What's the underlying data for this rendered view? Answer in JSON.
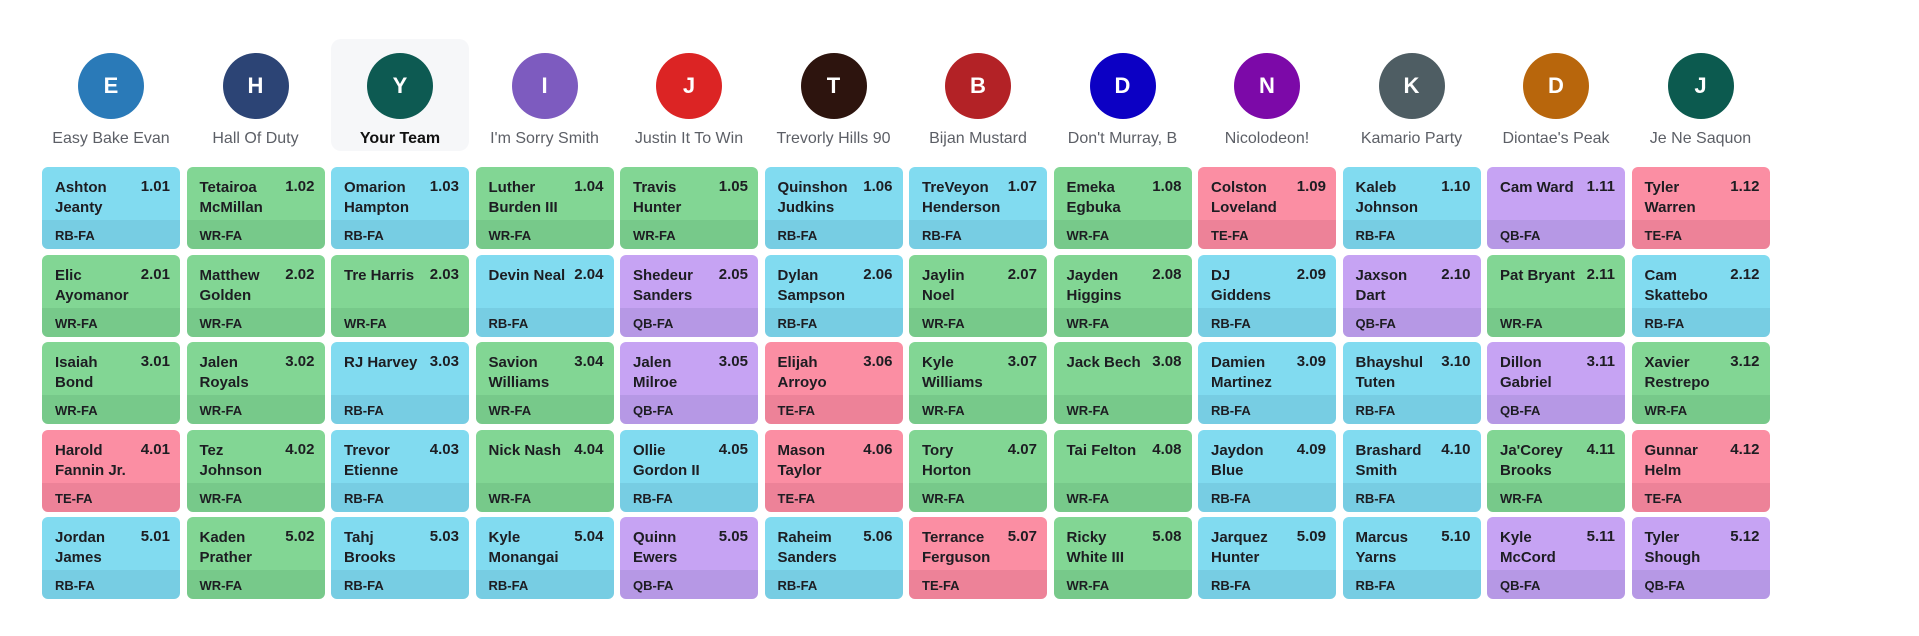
{
  "position_colors": {
    "RB": {
      "top": "#81dbf0",
      "bottom": "#77cde3"
    },
    "WR": {
      "top": "#82d694",
      "bottom": "#77c98a"
    },
    "QB": {
      "top": "#c6a3f3",
      "bottom": "#b698e5"
    },
    "TE": {
      "top": "#fb8ea3",
      "bottom": "#ed8298"
    }
  },
  "teams": [
    {
      "initial": "E",
      "name": "Easy Bake Evan",
      "color": "#2a7ab8"
    },
    {
      "initial": "H",
      "name": "Hall Of Duty",
      "color": "#2c4475"
    },
    {
      "initial": "Y",
      "name": "Your Team",
      "color": "#0d5a52",
      "mine": true
    },
    {
      "initial": "I",
      "name": "I'm Sorry Smith",
      "color": "#7d5bbf"
    },
    {
      "initial": "J",
      "name": "Justin It To Win",
      "color": "#dc2424"
    },
    {
      "initial": "T",
      "name": "Trevorly Hills 90",
      "color": "#2d140e"
    },
    {
      "initial": "B",
      "name": "Bijan Mustard",
      "color": "#b32226"
    },
    {
      "initial": "D",
      "name": "Don't Murray, B",
      "color": "#0c00c4"
    },
    {
      "initial": "N",
      "name": "Nicolodeon!",
      "color": "#7c09a8"
    },
    {
      "initial": "K",
      "name": "Kamario Party",
      "color": "#4e5d63"
    },
    {
      "initial": "D",
      "name": "Diontae's Peak",
      "color": "#b8660c"
    },
    {
      "initial": "J",
      "name": "Je Ne Saquon",
      "color": "#0c5a4f"
    }
  ],
  "rounds": [
    [
      {
        "name": "Ashton Jeanty",
        "pick": "1.01",
        "pos": "RB-FA"
      },
      {
        "name": "Tetairoa McMillan",
        "pick": "1.02",
        "pos": "WR-FA"
      },
      {
        "name": "Omarion Hampton",
        "pick": "1.03",
        "pos": "RB-FA"
      },
      {
        "name": "Luther Burden III",
        "pick": "1.04",
        "pos": "WR-FA"
      },
      {
        "name": "Travis Hunter",
        "pick": "1.05",
        "pos": "WR-FA"
      },
      {
        "name": "Quinshon Judkins",
        "pick": "1.06",
        "pos": "RB-FA"
      },
      {
        "name": "TreVeyon Henderson",
        "pick": "1.07",
        "pos": "RB-FA"
      },
      {
        "name": "Emeka Egbuka",
        "pick": "1.08",
        "pos": "WR-FA"
      },
      {
        "name": "Colston Loveland",
        "pick": "1.09",
        "pos": "TE-FA"
      },
      {
        "name": "Kaleb Johnson",
        "pick": "1.10",
        "pos": "RB-FA"
      },
      {
        "name": "Cam Ward",
        "pick": "1.11",
        "pos": "QB-FA"
      },
      {
        "name": "Tyler Warren",
        "pick": "1.12",
        "pos": "TE-FA"
      }
    ],
    [
      {
        "name": "Elic Ayomanor",
        "pick": "2.01",
        "pos": "WR-FA"
      },
      {
        "name": "Matthew Golden",
        "pick": "2.02",
        "pos": "WR-FA"
      },
      {
        "name": "Tre Harris",
        "pick": "2.03",
        "pos": "WR-FA"
      },
      {
        "name": "Devin Neal",
        "pick": "2.04",
        "pos": "RB-FA"
      },
      {
        "name": "Shedeur Sanders",
        "pick": "2.05",
        "pos": "QB-FA"
      },
      {
        "name": "Dylan Sampson",
        "pick": "2.06",
        "pos": "RB-FA"
      },
      {
        "name": "Jaylin Noel",
        "pick": "2.07",
        "pos": "WR-FA"
      },
      {
        "name": "Jayden Higgins",
        "pick": "2.08",
        "pos": "WR-FA"
      },
      {
        "name": "DJ Giddens",
        "pick": "2.09",
        "pos": "RB-FA"
      },
      {
        "name": "Jaxson Dart",
        "pick": "2.10",
        "pos": "QB-FA"
      },
      {
        "name": "Pat Bryant",
        "pick": "2.11",
        "pos": "WR-FA"
      },
      {
        "name": "Cam Skattebo",
        "pick": "2.12",
        "pos": "RB-FA"
      }
    ],
    [
      {
        "name": "Isaiah Bond",
        "pick": "3.01",
        "pos": "WR-FA"
      },
      {
        "name": "Jalen Royals",
        "pick": "3.02",
        "pos": "WR-FA"
      },
      {
        "name": "RJ Harvey",
        "pick": "3.03",
        "pos": "RB-FA"
      },
      {
        "name": "Savion Williams",
        "pick": "3.04",
        "pos": "WR-FA"
      },
      {
        "name": "Jalen Milroe",
        "pick": "3.05",
        "pos": "QB-FA"
      },
      {
        "name": "Elijah Arroyo",
        "pick": "3.06",
        "pos": "TE-FA"
      },
      {
        "name": "Kyle Williams",
        "pick": "3.07",
        "pos": "WR-FA"
      },
      {
        "name": "Jack Bech",
        "pick": "3.08",
        "pos": "WR-FA"
      },
      {
        "name": "Damien Martinez",
        "pick": "3.09",
        "pos": "RB-FA"
      },
      {
        "name": "Bhayshul Tuten",
        "pick": "3.10",
        "pos": "RB-FA"
      },
      {
        "name": "Dillon Gabriel",
        "pick": "3.11",
        "pos": "QB-FA"
      },
      {
        "name": "Xavier Restrepo",
        "pick": "3.12",
        "pos": "WR-FA"
      }
    ],
    [
      {
        "name": "Harold Fannin Jr.",
        "pick": "4.01",
        "pos": "TE-FA"
      },
      {
        "name": "Tez Johnson",
        "pick": "4.02",
        "pos": "WR-FA"
      },
      {
        "name": "Trevor Etienne",
        "pick": "4.03",
        "pos": "RB-FA"
      },
      {
        "name": "Nick Nash",
        "pick": "4.04",
        "pos": "WR-FA"
      },
      {
        "name": "Ollie Gordon II",
        "pick": "4.05",
        "pos": "RB-FA"
      },
      {
        "name": "Mason Taylor",
        "pick": "4.06",
        "pos": "TE-FA"
      },
      {
        "name": "Tory Horton",
        "pick": "4.07",
        "pos": "WR-FA"
      },
      {
        "name": "Tai Felton",
        "pick": "4.08",
        "pos": "WR-FA"
      },
      {
        "name": "Jaydon Blue",
        "pick": "4.09",
        "pos": "RB-FA"
      },
      {
        "name": "Brashard Smith",
        "pick": "4.10",
        "pos": "RB-FA"
      },
      {
        "name": "Ja'Corey Brooks",
        "pick": "4.11",
        "pos": "WR-FA"
      },
      {
        "name": "Gunnar Helm",
        "pick": "4.12",
        "pos": "TE-FA"
      }
    ],
    [
      {
        "name": "Jordan James",
        "pick": "5.01",
        "pos": "RB-FA"
      },
      {
        "name": "Kaden Prather",
        "pick": "5.02",
        "pos": "WR-FA"
      },
      {
        "name": "Tahj Brooks",
        "pick": "5.03",
        "pos": "RB-FA"
      },
      {
        "name": "Kyle Monangai",
        "pick": "5.04",
        "pos": "RB-FA"
      },
      {
        "name": "Quinn Ewers",
        "pick": "5.05",
        "pos": "QB-FA"
      },
      {
        "name": "Raheim Sanders",
        "pick": "5.06",
        "pos": "RB-FA"
      },
      {
        "name": "Terrance Ferguson",
        "pick": "5.07",
        "pos": "TE-FA"
      },
      {
        "name": "Ricky White III",
        "pick": "5.08",
        "pos": "WR-FA"
      },
      {
        "name": "Jarquez Hunter",
        "pick": "5.09",
        "pos": "RB-FA"
      },
      {
        "name": "Marcus Yarns",
        "pick": "5.10",
        "pos": "RB-FA"
      },
      {
        "name": "Kyle McCord",
        "pick": "5.11",
        "pos": "QB-FA"
      },
      {
        "name": "Tyler Shough",
        "pick": "5.12",
        "pos": "QB-FA"
      }
    ]
  ]
}
